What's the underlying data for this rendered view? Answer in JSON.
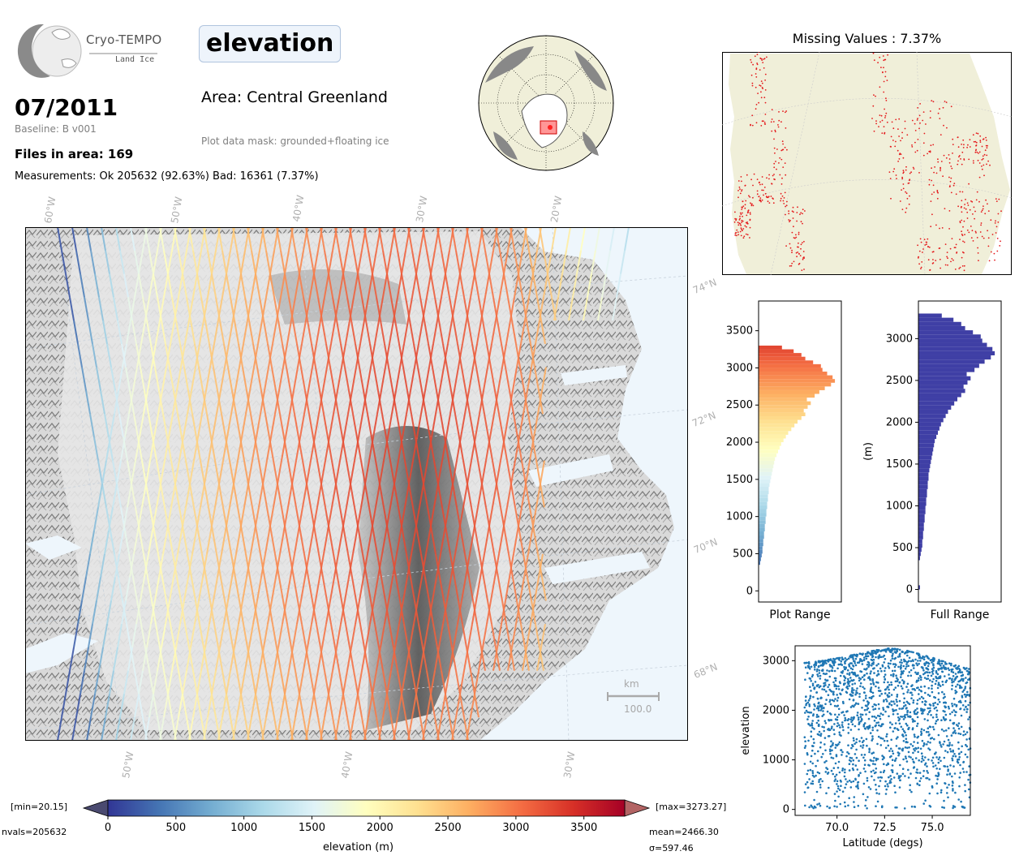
{
  "header": {
    "logo_title": "Cryo-TEMPO",
    "logo_subtitle": "Land Ice",
    "parameter": "elevation",
    "date": "07/2011",
    "baseline": "Baseline: B v001",
    "files": "Files in area: 169",
    "measurements": "Measurements: Ok 205632 (92.63%) Bad: 16361 (7.37%)",
    "area": "Area: Central Greenland",
    "mask": "Plot data mask: grounded+floating ice"
  },
  "main_map": {
    "top_lon_labels": [
      "60°W",
      "50°W",
      "40°W",
      "30°W",
      "20°W"
    ],
    "bottom_lon_labels": [
      "50°W",
      "40°W",
      "30°W"
    ],
    "lat_labels": [
      "74°N",
      "72°N",
      "70°N",
      "68°N"
    ],
    "scalebar_unit": "km",
    "scalebar_value": "100.0"
  },
  "missing_panel": {
    "title": "Missing Values : 7.37%"
  },
  "colorbar": {
    "min_label": "[min=20.15]",
    "max_label": "[max=3273.27]",
    "nvals": "nvals=205632",
    "mean": "mean=2466.30",
    "sigma": "σ=597.46",
    "xlabel": "elevation (m)",
    "ticks": [
      0,
      500,
      1000,
      1500,
      2000,
      2500,
      3000,
      3500
    ],
    "range": [
      0,
      3800
    ],
    "colors": [
      "#313695",
      "#4575b4",
      "#74add1",
      "#abd9e9",
      "#e0f3f8",
      "#ffffbf",
      "#fee090",
      "#fdae61",
      "#f46d43",
      "#d73027",
      "#a50026"
    ],
    "under_color": "#4a4a70",
    "over_color": "#b36464"
  },
  "chart_data": [
    {
      "type": "bar",
      "orientation": "horizontal",
      "xlabel": "Plot Range",
      "ylabel": "",
      "ylim": [
        -150,
        3900
      ],
      "yticks": [
        0,
        500,
        1000,
        1500,
        2000,
        2500,
        3000,
        3500
      ],
      "bin_width": 50,
      "bins": [
        [
          350,
          0.02
        ],
        [
          400,
          0.03
        ],
        [
          450,
          0.04
        ],
        [
          500,
          0.05
        ],
        [
          550,
          0.05
        ],
        [
          600,
          0.06
        ],
        [
          650,
          0.06
        ],
        [
          700,
          0.07
        ],
        [
          750,
          0.07
        ],
        [
          800,
          0.08
        ],
        [
          850,
          0.08
        ],
        [
          900,
          0.09
        ],
        [
          950,
          0.09
        ],
        [
          1000,
          0.1
        ],
        [
          1050,
          0.1
        ],
        [
          1100,
          0.11
        ],
        [
          1150,
          0.11
        ],
        [
          1200,
          0.12
        ],
        [
          1250,
          0.12
        ],
        [
          1300,
          0.13
        ],
        [
          1350,
          0.13
        ],
        [
          1400,
          0.14
        ],
        [
          1450,
          0.15
        ],
        [
          1500,
          0.16
        ],
        [
          1550,
          0.17
        ],
        [
          1600,
          0.18
        ],
        [
          1650,
          0.19
        ],
        [
          1700,
          0.2
        ],
        [
          1750,
          0.21
        ],
        [
          1800,
          0.23
        ],
        [
          1850,
          0.25
        ],
        [
          1900,
          0.27
        ],
        [
          1950,
          0.29
        ],
        [
          2000,
          0.32
        ],
        [
          2050,
          0.35
        ],
        [
          2100,
          0.38
        ],
        [
          2150,
          0.42
        ],
        [
          2200,
          0.46
        ],
        [
          2250,
          0.5
        ],
        [
          2300,
          0.55
        ],
        [
          2350,
          0.6
        ],
        [
          2400,
          0.58
        ],
        [
          2450,
          0.63
        ],
        [
          2500,
          0.67
        ],
        [
          2550,
          0.62
        ],
        [
          2600,
          0.72
        ],
        [
          2650,
          0.78
        ],
        [
          2700,
          0.85
        ],
        [
          2750,
          0.93
        ],
        [
          2800,
          0.98
        ],
        [
          2850,
          0.95
        ],
        [
          2900,
          0.88
        ],
        [
          2950,
          0.82
        ],
        [
          3000,
          0.8
        ],
        [
          3050,
          0.7
        ],
        [
          3100,
          0.6
        ],
        [
          3150,
          0.55
        ],
        [
          3200,
          0.45
        ],
        [
          3250,
          0.3
        ]
      ]
    },
    {
      "type": "bar",
      "orientation": "horizontal",
      "xlabel": "Full Range",
      "ylabel": "(m)",
      "ylim": [
        -150,
        3450
      ],
      "yticks": [
        0,
        500,
        1000,
        1500,
        2000,
        2500,
        3000
      ],
      "bin_width": 50,
      "bins": [
        [
          0,
          0.02
        ],
        [
          350,
          0.02
        ],
        [
          400,
          0.03
        ],
        [
          450,
          0.04
        ],
        [
          500,
          0.05
        ],
        [
          550,
          0.05
        ],
        [
          600,
          0.06
        ],
        [
          650,
          0.06
        ],
        [
          700,
          0.07
        ],
        [
          750,
          0.07
        ],
        [
          800,
          0.08
        ],
        [
          850,
          0.08
        ],
        [
          900,
          0.09
        ],
        [
          950,
          0.09
        ],
        [
          1000,
          0.1
        ],
        [
          1050,
          0.1
        ],
        [
          1100,
          0.11
        ],
        [
          1150,
          0.11
        ],
        [
          1200,
          0.12
        ],
        [
          1250,
          0.12
        ],
        [
          1300,
          0.13
        ],
        [
          1350,
          0.13
        ],
        [
          1400,
          0.14
        ],
        [
          1450,
          0.15
        ],
        [
          1500,
          0.16
        ],
        [
          1550,
          0.17
        ],
        [
          1600,
          0.18
        ],
        [
          1650,
          0.19
        ],
        [
          1700,
          0.2
        ],
        [
          1750,
          0.21
        ],
        [
          1800,
          0.23
        ],
        [
          1850,
          0.25
        ],
        [
          1900,
          0.27
        ],
        [
          1950,
          0.29
        ],
        [
          2000,
          0.32
        ],
        [
          2050,
          0.35
        ],
        [
          2100,
          0.38
        ],
        [
          2150,
          0.42
        ],
        [
          2200,
          0.46
        ],
        [
          2250,
          0.5
        ],
        [
          2300,
          0.55
        ],
        [
          2350,
          0.6
        ],
        [
          2400,
          0.58
        ],
        [
          2450,
          0.63
        ],
        [
          2500,
          0.67
        ],
        [
          2550,
          0.62
        ],
        [
          2600,
          0.72
        ],
        [
          2650,
          0.78
        ],
        [
          2700,
          0.85
        ],
        [
          2750,
          0.93
        ],
        [
          2800,
          0.98
        ],
        [
          2850,
          0.95
        ],
        [
          2900,
          0.88
        ],
        [
          2950,
          0.82
        ],
        [
          3000,
          0.8
        ],
        [
          3050,
          0.7
        ],
        [
          3100,
          0.6
        ],
        [
          3150,
          0.55
        ],
        [
          3200,
          0.45
        ],
        [
          3250,
          0.3
        ]
      ],
      "color": "#3f3fa5"
    },
    {
      "type": "scatter",
      "xlabel": "Latitude (degs)",
      "ylabel": "elevation",
      "xlim": [
        67.8,
        77.0
      ],
      "ylim": [
        -120,
        3300
      ],
      "xticks": [
        70.0,
        72.5,
        75.0
      ],
      "xtick_labels": [
        "70.0",
        "72.5",
        "75.0"
      ],
      "yticks": [
        0,
        1000,
        2000,
        3000
      ],
      "color": "#1f77b4",
      "upper_envelope": [
        [
          68.3,
          2960
        ],
        [
          69.0,
          2990
        ],
        [
          70.0,
          3050
        ],
        [
          71.0,
          3130
        ],
        [
          72.0,
          3210
        ],
        [
          72.8,
          3250
        ],
        [
          73.5,
          3220
        ],
        [
          74.5,
          3120
        ],
        [
          75.5,
          3000
        ],
        [
          76.5,
          2880
        ],
        [
          77.0,
          2830
        ]
      ]
    }
  ]
}
